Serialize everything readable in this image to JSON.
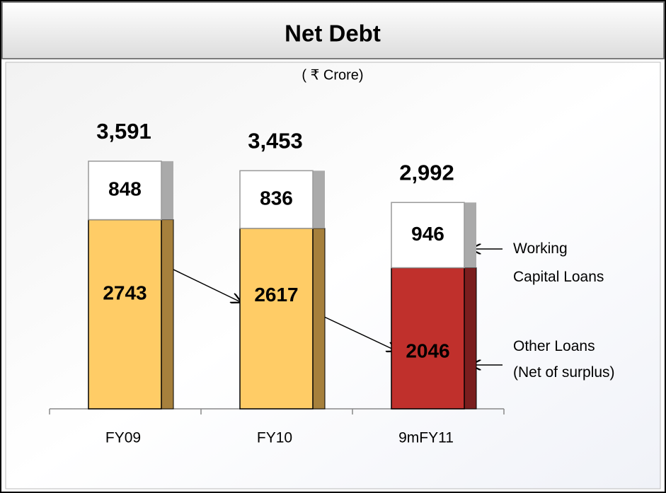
{
  "chart_data": {
    "type": "stacked_bar",
    "title": "Net Debt",
    "subtitle": "( ₹ Crore)",
    "categories": [
      "FY09",
      "FY10",
      "9mFY11"
    ],
    "series": [
      {
        "name": "Other Loans (Net of surplus)",
        "colors": [
          "#ffcc66",
          "#ffcc66",
          "#c0302c"
        ],
        "shadow_colors": [
          "#a6803c",
          "#a6803c",
          "#7a1e1e"
        ],
        "values": [
          2743,
          2617,
          2046
        ]
      },
      {
        "name": "Working Capital Loans",
        "colors": [
          "#ffffff",
          "#ffffff",
          "#ffffff"
        ],
        "shadow_colors": [
          "#aaaaaa",
          "#aaaaaa",
          "#aaaaaa"
        ],
        "values": [
          848,
          836,
          946
        ]
      }
    ],
    "total_labels": [
      "3,591",
      "3,453",
      "2,992"
    ],
    "ylim": [
      0,
      3600
    ]
  }
}
